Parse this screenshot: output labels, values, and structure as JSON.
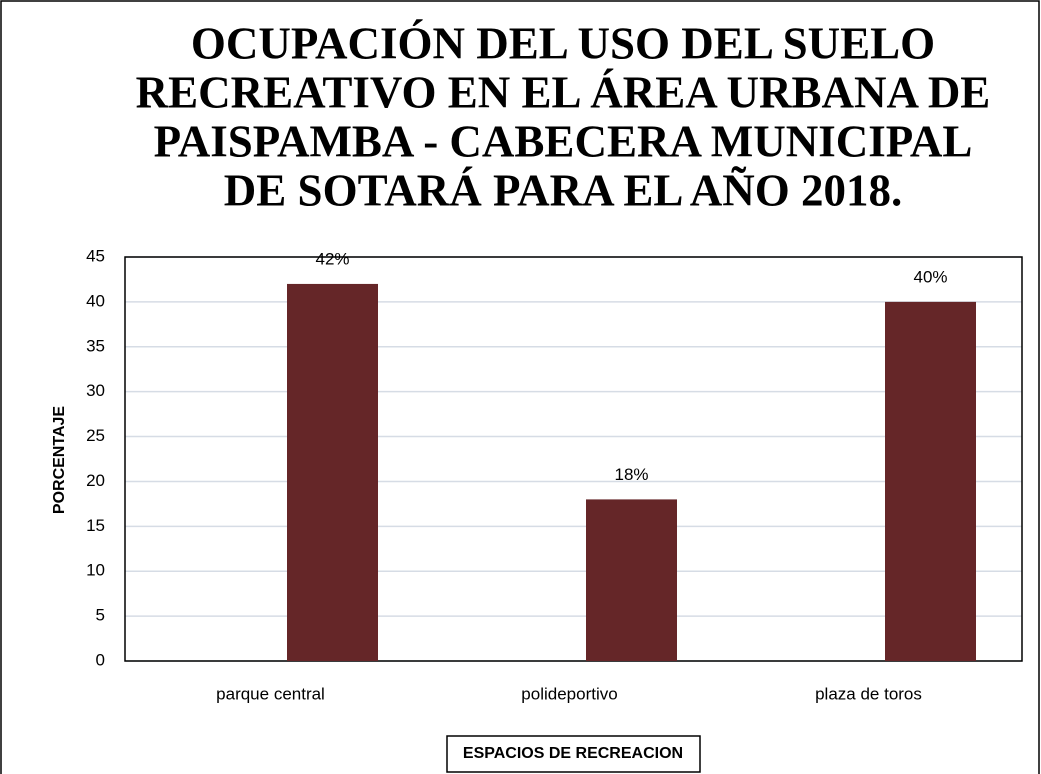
{
  "chart_data": {
    "type": "bar",
    "title": [
      "OCUPACIÓN DEL USO DEL SUELO",
      "RECREATIVO EN EL ÁREA URBANA DE",
      "PAISPAMBA - CABECERA MUNICIPAL",
      "DE SOTARÁ PARA EL AÑO 2018."
    ],
    "y_label": "PORCENTAJE",
    "x_label": "ESPACIOS DE RECREACION",
    "categories": [
      "parque central",
      "polideportivo",
      "plaza de toros"
    ],
    "values": [
      42,
      18,
      40
    ],
    "value_labels": [
      "42%",
      "18%",
      "40%"
    ],
    "color": "#652628",
    "ylim": [
      0,
      45
    ],
    "yticks": [
      0,
      5,
      10,
      15,
      20,
      25,
      30,
      35,
      40,
      45
    ],
    "grid": true
  }
}
